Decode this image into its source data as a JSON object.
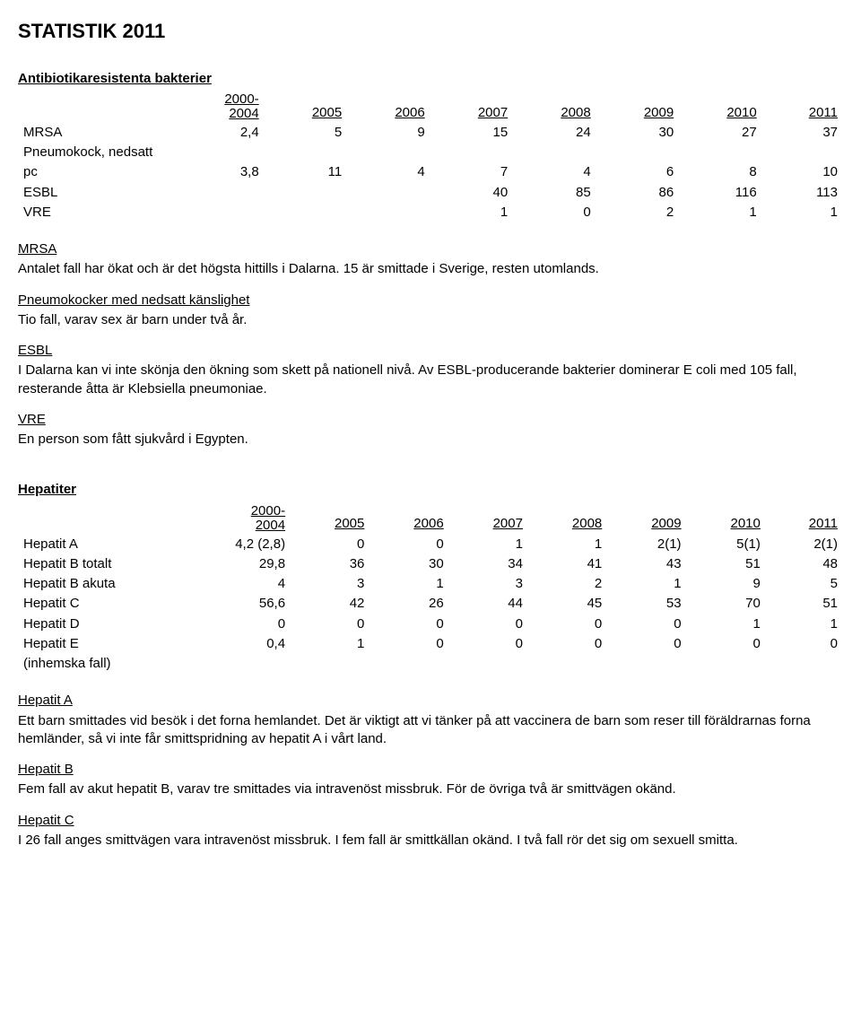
{
  "title": "STATISTIK 2011",
  "section1": {
    "heading": "Antibiotikaresistenta bakterier",
    "range_top": "2000-",
    "years": [
      "2004",
      "2005",
      "2006",
      "2007",
      "2008",
      "2009",
      "2010",
      "2011"
    ],
    "rows": [
      {
        "label": "MRSA",
        "vals": [
          "2,4",
          "5",
          "9",
          "15",
          "24",
          "30",
          "27",
          "37"
        ]
      },
      {
        "label": "Pneumokock, nedsatt",
        "vals": [
          "",
          "",
          "",
          "",
          "",
          "",
          "",
          ""
        ]
      },
      {
        "label": "pc",
        "vals": [
          "3,8",
          "11",
          "4",
          "7",
          "4",
          "6",
          "8",
          "10"
        ]
      },
      {
        "label": "ESBL",
        "vals": [
          "",
          "",
          "",
          "40",
          "85",
          "86",
          "116",
          "113"
        ]
      },
      {
        "label": "VRE",
        "vals": [
          "",
          "",
          "",
          "1",
          "0",
          "2",
          "1",
          "1"
        ]
      }
    ]
  },
  "mrsa_heading": "MRSA",
  "mrsa_text": "Antalet fall har ökat och är det högsta hittills i Dalarna. 15 är smittade i Sverige, resten utomlands.",
  "pneumo_heading": "Pneumokocker med nedsatt känslighet",
  "pneumo_text": "Tio fall, varav sex är barn under två år.",
  "esbl_heading": "ESBL",
  "esbl_text": "I Dalarna kan vi inte skönja den ökning som skett på nationell nivå. Av ESBL-producerande bakterier dominerar E coli med 105 fall, resterande åtta är Klebsiella pneumoniae.",
  "vre_heading": "VRE",
  "vre_text": "En person som fått sjukvård i Egypten.",
  "section2": {
    "heading": "Hepatiter",
    "range_top": "2000-",
    "years": [
      "2004",
      "2005",
      "2006",
      "2007",
      "2008",
      "2009",
      "2010",
      "2011"
    ],
    "rows": [
      {
        "label": "Hepatit A",
        "vals": [
          "4,2 (2,8)",
          "0",
          "0",
          "1",
          "1",
          "2(1)",
          "5(1)",
          "2(1)"
        ]
      },
      {
        "label": "Hepatit B totalt",
        "vals": [
          "29,8",
          "36",
          "30",
          "34",
          "41",
          "43",
          "51",
          "48"
        ]
      },
      {
        "label": "Hepatit B akuta",
        "vals": [
          "4",
          "3",
          "1",
          "3",
          "2",
          "1",
          "9",
          "5"
        ]
      },
      {
        "label": "Hepatit C",
        "vals": [
          "56,6",
          "42",
          "26",
          "44",
          "45",
          "53",
          "70",
          "51"
        ]
      },
      {
        "label": "Hepatit D",
        "vals": [
          "0",
          "0",
          "0",
          "0",
          "0",
          "0",
          "1",
          "1"
        ]
      },
      {
        "label": "Hepatit E",
        "vals": [
          "0,4",
          "1",
          "0",
          "0",
          "0",
          "0",
          "0",
          "0"
        ]
      }
    ],
    "footnote": "(inhemska fall)"
  },
  "hepA_heading": "Hepatit A",
  "hepA_text": "Ett barn smittades vid besök i det forna hemlandet. Det är viktigt att vi tänker på att vaccinera de barn som reser till föräldrarnas forna hemländer, så vi inte får smittspridning av hepatit A i vårt land.",
  "hepB_heading": "Hepatit B",
  "hepB_text": "Fem fall av akut hepatit B, varav tre smittades via intravenöst missbruk. För de övriga två är smittvägen okänd.",
  "hepC_heading": "Hepatit C",
  "hepC_text": "I 26 fall anges smittvägen vara intravenöst missbruk. I fem fall är smittkällan okänd. I två fall rör det sig om sexuell smitta."
}
